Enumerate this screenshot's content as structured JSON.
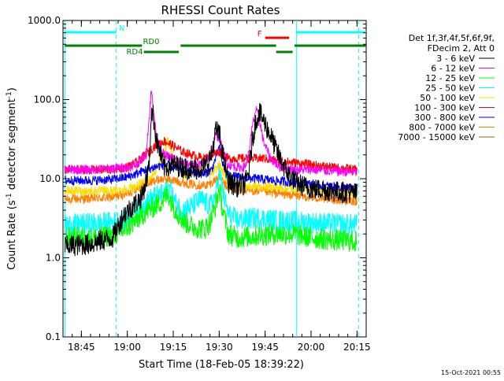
{
  "chart_data": {
    "type": "line",
    "title": "RHESSI Count Rates",
    "xlabel": "Start Time (18-Feb-05 18:39:22)",
    "ylabel": "Count Rate (s⁻¹ detector segment⁻¹)",
    "ylabel_main": "Count Rate (s",
    "ylabel_exp1": "-1",
    "ylabel_mid": " detector segment",
    "ylabel_exp2": "-1",
    "ylabel_end": ")",
    "y_scale": "log",
    "ylim": [
      0.1,
      1000
    ],
    "xlim_minutes": [
      18.65,
      20.3
    ],
    "x_ticks": [
      {
        "label": "18:45",
        "t": 18.75
      },
      {
        "label": "19:00",
        "t": 19.0
      },
      {
        "label": "19:15",
        "t": 19.25
      },
      {
        "label": "19:30",
        "t": 19.5
      },
      {
        "label": "19:45",
        "t": 19.75
      },
      {
        "label": "20:00",
        "t": 20.0
      },
      {
        "label": "20:15",
        "t": 20.25
      }
    ],
    "y_ticks": [
      {
        "label": "0.1",
        "v": 0.1
      },
      {
        "label": "1.0",
        "v": 1.0
      },
      {
        "label": "10.0",
        "v": 10.0
      },
      {
        "label": "100.0",
        "v": 100.0
      },
      {
        "label": "1000.0",
        "v": 1000.0
      }
    ],
    "legend_header": [
      "Det 1f,3f,4f,5f,6f,9f,",
      "FDecim 2, Att 0"
    ],
    "legend_placement": "right",
    "series": [
      {
        "name": "3 - 6 keV",
        "color": "#000000",
        "points": [
          [
            18.66,
            1.4
          ],
          [
            18.8,
            1.5
          ],
          [
            18.92,
            1.8
          ],
          [
            18.98,
            3.5
          ],
          [
            19.05,
            5.0
          ],
          [
            19.08,
            6.0
          ],
          [
            19.1,
            9
          ],
          [
            19.12,
            15
          ],
          [
            19.13,
            70
          ],
          [
            19.14,
            65
          ],
          [
            19.16,
            30
          ],
          [
            19.2,
            14
          ],
          [
            19.25,
            15
          ],
          [
            19.3,
            14
          ],
          [
            19.35,
            13
          ],
          [
            19.42,
            14
          ],
          [
            19.46,
            20
          ],
          [
            19.48,
            40
          ],
          [
            19.5,
            38
          ],
          [
            19.52,
            20
          ],
          [
            19.55,
            9
          ],
          [
            19.6,
            8
          ],
          [
            19.64,
            8.5
          ],
          [
            19.66,
            12
          ],
          [
            19.68,
            30
          ],
          [
            19.7,
            55
          ],
          [
            19.72,
            68
          ],
          [
            19.74,
            55
          ],
          [
            19.78,
            35
          ],
          [
            19.83,
            18
          ],
          [
            19.87,
            12
          ],
          [
            19.92,
            9
          ],
          [
            19.96,
            8
          ],
          [
            20.0,
            7.5
          ],
          [
            20.1,
            7
          ],
          [
            20.25,
            6.5
          ]
        ]
      },
      {
        "name": "6 - 12 keV",
        "color": "#ff00ff",
        "points": [
          [
            18.66,
            13
          ],
          [
            18.8,
            13
          ],
          [
            18.92,
            13.5
          ],
          [
            19.0,
            14
          ],
          [
            19.05,
            15
          ],
          [
            19.1,
            20
          ],
          [
            19.12,
            60
          ],
          [
            19.13,
            130
          ],
          [
            19.14,
            90
          ],
          [
            19.16,
            30
          ],
          [
            19.2,
            20
          ],
          [
            19.25,
            18
          ],
          [
            19.3,
            16
          ],
          [
            19.35,
            15
          ],
          [
            19.42,
            15
          ],
          [
            19.46,
            22
          ],
          [
            19.48,
            35
          ],
          [
            19.5,
            33
          ],
          [
            19.52,
            22
          ],
          [
            19.55,
            15
          ],
          [
            19.6,
            14
          ],
          [
            19.64,
            14
          ],
          [
            19.66,
            20
          ],
          [
            19.68,
            45
          ],
          [
            19.7,
            75
          ],
          [
            19.72,
            55
          ],
          [
            19.74,
            30
          ],
          [
            19.78,
            18
          ],
          [
            19.83,
            14
          ],
          [
            19.9,
            13
          ],
          [
            20.0,
            13
          ],
          [
            20.1,
            12.5
          ],
          [
            20.25,
            12
          ]
        ]
      },
      {
        "name": "12 - 25 keV",
        "color": "#00ff00",
        "points": [
          [
            18.66,
            1.8
          ],
          [
            18.8,
            1.8
          ],
          [
            18.92,
            1.9
          ],
          [
            18.98,
            2.2
          ],
          [
            19.05,
            3.0
          ],
          [
            19.1,
            3.8
          ],
          [
            19.15,
            4.5
          ],
          [
            19.2,
            5.5
          ],
          [
            19.22,
            6.5
          ],
          [
            19.25,
            4.5
          ],
          [
            19.3,
            3.0
          ],
          [
            19.35,
            2.5
          ],
          [
            19.42,
            2.3
          ],
          [
            19.45,
            2.8
          ],
          [
            19.48,
            4.5
          ],
          [
            19.5,
            7.5
          ],
          [
            19.52,
            4
          ],
          [
            19.55,
            2.0
          ],
          [
            19.6,
            1.8
          ],
          [
            19.7,
            1.9
          ],
          [
            19.8,
            2.0
          ],
          [
            19.9,
            2.0
          ],
          [
            20.0,
            1.8
          ],
          [
            20.1,
            1.7
          ],
          [
            20.25,
            1.6
          ]
        ]
      },
      {
        "name": "25 - 50 keV",
        "color": "#00ffff",
        "points": [
          [
            18.66,
            2.6
          ],
          [
            18.8,
            2.7
          ],
          [
            18.92,
            2.8
          ],
          [
            19.0,
            3.0
          ],
          [
            19.05,
            4.0
          ],
          [
            19.1,
            5.0
          ],
          [
            19.15,
            6.0
          ],
          [
            19.2,
            6.5
          ],
          [
            19.23,
            8.0
          ],
          [
            19.26,
            5.0
          ],
          [
            19.3,
            4.0
          ],
          [
            19.35,
            4.5
          ],
          [
            19.4,
            5.5
          ],
          [
            19.45,
            4.5
          ],
          [
            19.48,
            6.0
          ],
          [
            19.5,
            12
          ],
          [
            19.52,
            7
          ],
          [
            19.55,
            3.5
          ],
          [
            19.6,
            3.0
          ],
          [
            19.7,
            3.2
          ],
          [
            19.8,
            3.0
          ],
          [
            19.9,
            2.9
          ],
          [
            20.0,
            2.8
          ],
          [
            20.1,
            2.7
          ],
          [
            20.25,
            2.6
          ]
        ]
      },
      {
        "name": "50 - 100 keV",
        "color": "#ffdd00",
        "points": [
          [
            18.66,
            7.0
          ],
          [
            18.8,
            7.0
          ],
          [
            18.92,
            7.0
          ],
          [
            19.0,
            7.5
          ],
          [
            19.05,
            8.0
          ],
          [
            19.1,
            9.0
          ],
          [
            19.15,
            12
          ],
          [
            19.2,
            20
          ],
          [
            19.22,
            30
          ],
          [
            19.25,
            18
          ],
          [
            19.3,
            11
          ],
          [
            19.35,
            12
          ],
          [
            19.4,
            13
          ],
          [
            19.45,
            11
          ],
          [
            19.48,
            13
          ],
          [
            19.5,
            15
          ],
          [
            19.52,
            12
          ],
          [
            19.55,
            9
          ],
          [
            19.6,
            8
          ],
          [
            19.7,
            8
          ],
          [
            19.8,
            7.8
          ],
          [
            19.9,
            7.5
          ],
          [
            20.0,
            7.2
          ],
          [
            20.1,
            7.0
          ],
          [
            20.25,
            6.8
          ]
        ]
      },
      {
        "name": "100 - 300 keV",
        "color": "#ff0000",
        "points": [
          [
            18.66,
            13
          ],
          [
            18.8,
            13
          ],
          [
            18.92,
            13
          ],
          [
            19.0,
            14
          ],
          [
            19.05,
            16
          ],
          [
            19.1,
            20
          ],
          [
            19.15,
            26
          ],
          [
            19.2,
            30
          ],
          [
            19.25,
            26
          ],
          [
            19.3,
            22
          ],
          [
            19.35,
            20
          ],
          [
            19.42,
            18
          ],
          [
            19.46,
            20
          ],
          [
            19.5,
            22
          ],
          [
            19.52,
            20
          ],
          [
            19.55,
            18
          ],
          [
            19.6,
            18
          ],
          [
            19.7,
            18
          ],
          [
            19.75,
            18
          ],
          [
            19.8,
            17
          ],
          [
            19.9,
            16
          ],
          [
            20.0,
            15
          ],
          [
            20.1,
            14
          ],
          [
            20.25,
            13
          ]
        ]
      },
      {
        "name": "300 - 800 keV",
        "color": "#0000ff",
        "points": [
          [
            18.66,
            9.5
          ],
          [
            18.8,
            9.5
          ],
          [
            18.92,
            9.8
          ],
          [
            19.0,
            10.5
          ],
          [
            19.05,
            11.5
          ],
          [
            19.1,
            13
          ],
          [
            19.15,
            14
          ],
          [
            19.2,
            15
          ],
          [
            19.25,
            14
          ],
          [
            19.3,
            13
          ],
          [
            19.35,
            12
          ],
          [
            19.42,
            11.5
          ],
          [
            19.46,
            13
          ],
          [
            19.5,
            25
          ],
          [
            19.52,
            15
          ],
          [
            19.55,
            11
          ],
          [
            19.6,
            10.5
          ],
          [
            19.7,
            10
          ],
          [
            19.8,
            9.5
          ],
          [
            19.9,
            9.0
          ],
          [
            20.0,
            8.5
          ],
          [
            20.1,
            8.0
          ],
          [
            20.25,
            7.5
          ]
        ]
      },
      {
        "name": "800 - 7000 keV",
        "color": "#ff8000",
        "points": [
          [
            18.66,
            5.5
          ],
          [
            18.8,
            5.6
          ],
          [
            18.92,
            5.8
          ],
          [
            19.0,
            6.5
          ],
          [
            19.05,
            7.5
          ],
          [
            19.1,
            8.5
          ],
          [
            19.15,
            9.5
          ],
          [
            19.2,
            10
          ],
          [
            19.25,
            9.5
          ],
          [
            19.3,
            9.0
          ],
          [
            19.35,
            8.5
          ],
          [
            19.42,
            8.2
          ],
          [
            19.46,
            8.8
          ],
          [
            19.5,
            11
          ],
          [
            19.52,
            9
          ],
          [
            19.55,
            7.5
          ],
          [
            19.6,
            7.2
          ],
          [
            19.7,
            7.0
          ],
          [
            19.8,
            6.6
          ],
          [
            19.9,
            6.2
          ],
          [
            20.0,
            5.8
          ],
          [
            20.1,
            5.5
          ],
          [
            20.25,
            5.2
          ]
        ]
      },
      {
        "name": "7000 - 15000 keV",
        "color": "#8b6a00",
        "points": []
      }
    ],
    "vertical_lines": [
      {
        "t": 18.66,
        "color": "#00ffff",
        "style": "solid"
      },
      {
        "t": 18.94,
        "color": "#00ffff",
        "style": "dashed"
      },
      {
        "t": 19.92,
        "color": "#00ffff",
        "style": "solid"
      },
      {
        "t": 20.26,
        "color": "#00ffff",
        "style": "dashed"
      }
    ],
    "flags": [
      {
        "label": "N",
        "color": "#00ffff",
        "row": 1,
        "segments": [
          [
            18.66,
            18.94
          ]
        ],
        "label_t": 18.97
      },
      {
        "label": "",
        "color": "#00ffff",
        "row": 1,
        "segments": [
          [
            19.92,
            20.3
          ]
        ]
      },
      {
        "label": "F",
        "color": "#ff0000",
        "row": 2,
        "segments": [
          [
            19.75,
            19.88
          ]
        ],
        "label_t": 19.72
      },
      {
        "label": "RD0",
        "color": "#008000",
        "row": 3,
        "segments": [
          [
            18.66,
            19.08
          ],
          [
            19.29,
            19.81
          ],
          [
            19.91,
            20.3
          ]
        ],
        "label_t": 19.13
      },
      {
        "label": "RD4",
        "color": "#008000",
        "row": 4,
        "segments": [
          [
            19.09,
            19.28
          ],
          [
            19.81,
            19.9
          ]
        ],
        "label_t": 19.04
      }
    ],
    "footer_date": "15-Oct-2021 00:55"
  }
}
